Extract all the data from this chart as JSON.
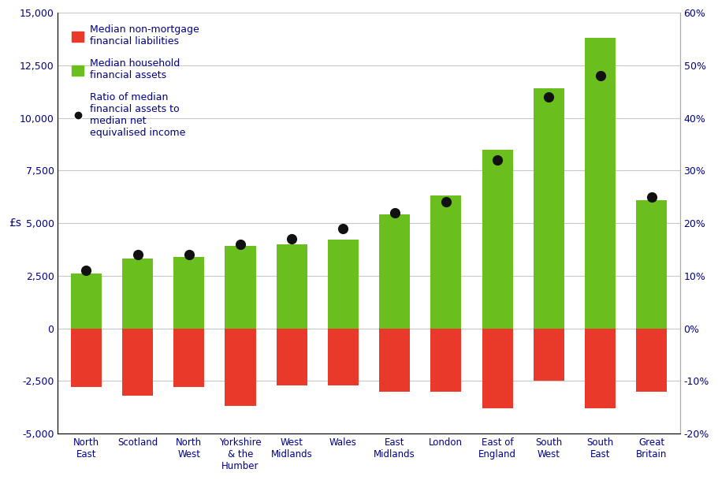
{
  "categories": [
    "North\nEast",
    "Scotland",
    "North\nWest",
    "Yorkshire\n& the\nHumber",
    "West\nMidlands",
    "Wales",
    "East\nMidlands",
    "London",
    "East of\nEngland",
    "South\nWest",
    "South\nEast",
    "Great\nBritain"
  ],
  "financial_assets": [
    2600,
    3300,
    3400,
    3900,
    4000,
    4200,
    5400,
    6300,
    8500,
    11400,
    13800,
    6100
  ],
  "financial_liabilities": [
    -2800,
    -3200,
    -2800,
    -3700,
    -2700,
    -2700,
    -3000,
    -3000,
    -3800,
    -2500,
    -3800,
    -3000
  ],
  "ratio_pct": [
    0.11,
    0.14,
    0.14,
    0.16,
    0.17,
    0.19,
    0.22,
    0.24,
    0.32,
    0.44,
    0.48,
    0.25
  ],
  "bar_color_green": "#6abf1e",
  "bar_color_red": "#e8392a",
  "dot_color": "#111111",
  "ylim_left": [
    -5000,
    15000
  ],
  "ylim_right": [
    -0.2,
    0.6
  ],
  "yticks_left": [
    -5000,
    -2500,
    0,
    2500,
    5000,
    7500,
    10000,
    12500,
    15000
  ],
  "yticks_left_labels": [
    "-5,000",
    "-2,500",
    "0",
    "2,500",
    "5,000",
    "7,500",
    "10,000",
    "12,500",
    "15,000"
  ],
  "yticks_right_vals": [
    -0.2,
    -0.1,
    0.0,
    0.1,
    0.2,
    0.3,
    0.4,
    0.5,
    0.6
  ],
  "yticks_right_labels": [
    "-20%",
    "-10%",
    "0%",
    "10%",
    "20%",
    "30%",
    "40%",
    "50%",
    "60%"
  ],
  "ylabel_left": "£s",
  "legend_labels": [
    "Median non-mortgage\nfinancial liabilities",
    "Median household\nfinancial assets",
    "Ratio of median\nfinancial assets to\nmedian net\nequivalised income"
  ],
  "background_color": "#ffffff",
  "grid_color": "#c8c8c8",
  "tick_label_color": "#00008b",
  "legend_fontsize": 9,
  "bar_width": 0.6
}
